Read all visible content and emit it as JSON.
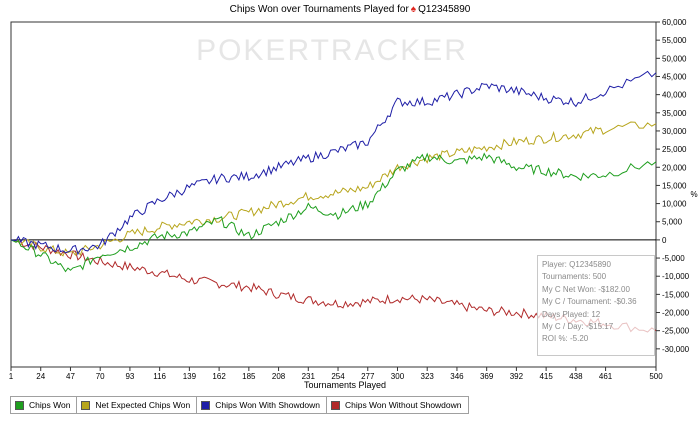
{
  "window": {
    "title": "Chips Won over Tournaments Played for",
    "player_name": "Q12345890",
    "title_icon": "spade-icon"
  },
  "watermark": "POKERTRACKER",
  "colors": {
    "chips_won": "#1e9e1e",
    "net_expected": "#b7a51c",
    "showdown": "#1e1ea6",
    "without_showdown": "#b02a2a",
    "accent": "#e0261f"
  },
  "chart_data": {
    "type": "line",
    "title": "Chips Won over Tournaments Played for Q12345890",
    "xlabel": "Tournaments Played",
    "ylabel": "%",
    "xlim": [
      1,
      500
    ],
    "ylim": [
      -35000,
      60000
    ],
    "grid": false,
    "legend": "bottom",
    "x_ticks": [
      1,
      24,
      47,
      70,
      93,
      116,
      139,
      162,
      185,
      208,
      231,
      254,
      277,
      300,
      323,
      346,
      369,
      392,
      415,
      438,
      461,
      500
    ],
    "y_ticks": [
      60000,
      55000,
      50000,
      45000,
      40000,
      35000,
      30000,
      25000,
      20000,
      15000,
      10000,
      5000,
      0,
      -5000,
      -10000,
      -15000,
      -20000,
      -25000,
      -30000
    ],
    "y_tick_labels": [
      "60,000",
      "55,000",
      "50,000",
      "45,000",
      "40,000",
      "35,000",
      "30,000",
      "25,000",
      "20,000",
      "15,000",
      "10,000",
      "5,000",
      "0",
      "-5,000",
      "-10,000",
      "-15,000",
      "-20,000",
      "-25,000",
      "-30,000"
    ],
    "series": [
      {
        "name": "Chips Won",
        "color": "#1e9e1e",
        "x": [
          1,
          24,
          47,
          70,
          93,
          116,
          139,
          162,
          185,
          208,
          231,
          254,
          277,
          300,
          323,
          346,
          369,
          392,
          415,
          438,
          461,
          500
        ],
        "y": [
          0,
          -4000,
          -9000,
          -4000,
          -2000,
          1000,
          2000,
          5500,
          1000,
          5000,
          9000,
          7000,
          10000,
          19000,
          23000,
          21500,
          23000,
          20000,
          19000,
          17500,
          18000,
          21500
        ]
      },
      {
        "name": "Net Expected Chips Won",
        "color": "#b7a51c",
        "x": [
          1,
          24,
          47,
          70,
          93,
          116,
          139,
          162,
          185,
          208,
          231,
          254,
          277,
          300,
          323,
          346,
          369,
          392,
          415,
          438,
          461,
          500
        ],
        "y": [
          0,
          -2000,
          -4000,
          -1500,
          1500,
          3500,
          5000,
          6000,
          7500,
          10000,
          12000,
          13000,
          14500,
          20000,
          22500,
          24000,
          25500,
          27000,
          28000,
          29000,
          30500,
          32000
        ]
      },
      {
        "name": "Chips Won With Showdown",
        "color": "#1e1ea6",
        "x": [
          1,
          24,
          47,
          70,
          93,
          116,
          139,
          162,
          185,
          208,
          231,
          254,
          277,
          300,
          323,
          346,
          369,
          392,
          415,
          438,
          461,
          500
        ],
        "y": [
          0,
          -1500,
          -3000,
          -1500,
          6000,
          11000,
          14500,
          17000,
          17500,
          20000,
          22500,
          24500,
          27000,
          38000,
          38000,
          40000,
          42500,
          41000,
          39000,
          38000,
          41000,
          46000
        ]
      },
      {
        "name": "Chips Won Without Showdown",
        "color": "#b02a2a",
        "x": [
          1,
          24,
          47,
          70,
          93,
          116,
          139,
          162,
          185,
          208,
          231,
          254,
          277,
          300,
          323,
          346,
          369,
          392,
          415,
          438,
          461,
          500
        ],
        "y": [
          0,
          -2000,
          -4000,
          -6000,
          -7500,
          -9000,
          -11000,
          -12000,
          -13000,
          -15000,
          -16500,
          -17500,
          -17000,
          -16000,
          -16500,
          -18000,
          -19500,
          -20000,
          -21000,
          -22000,
          -23000,
          -25000
        ]
      }
    ]
  },
  "stats": {
    "player": "Player: Q12345890",
    "tournaments": "Tournaments: 500",
    "net_won": "My C Net Won: -$182.00",
    "per_tournament": "My C / Tournament: -$0.36",
    "days_played": "Days Played: 12",
    "per_day": "My C / Day: -$15.17",
    "roi": "ROI %: -5.20"
  },
  "legend": [
    {
      "label": "Chips Won",
      "color": "#1e9e1e"
    },
    {
      "label": "Net Expected Chips Won",
      "color": "#b7a51c"
    },
    {
      "label": "Chips Won With Showdown",
      "color": "#1e1ea6"
    },
    {
      "label": "Chips Won Without Showdown",
      "color": "#b02a2a"
    }
  ]
}
